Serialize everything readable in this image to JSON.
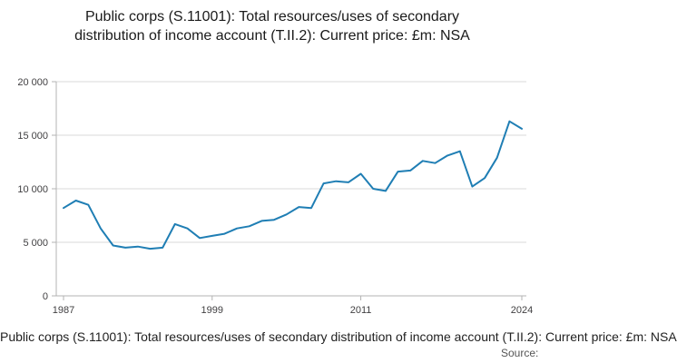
{
  "chart_data": {
    "type": "line",
    "title": "Public corps (S.11001): Total resources/uses of secondary distribution of income account (T.II.2): Current price: £m: NSA",
    "xlabel": "",
    "ylabel": "",
    "x": [
      1987,
      1988,
      1989,
      1990,
      1991,
      1992,
      1993,
      1994,
      1995,
      1996,
      1997,
      1998,
      1999,
      2000,
      2001,
      2002,
      2003,
      2004,
      2005,
      2006,
      2007,
      2008,
      2009,
      2010,
      2011,
      2012,
      2013,
      2014,
      2015,
      2016,
      2017,
      2018,
      2019,
      2020,
      2021,
      2022,
      2023,
      2024
    ],
    "values": [
      8200,
      8900,
      8500,
      6300,
      4700,
      4500,
      4600,
      4400,
      4500,
      6700,
      6300,
      5400,
      5600,
      5800,
      6300,
      6500,
      7000,
      7100,
      7600,
      8300,
      8200,
      10500,
      10700,
      10600,
      11400,
      10000,
      9800,
      11600,
      11700,
      12600,
      12400,
      13100,
      13500,
      10200,
      11000,
      12900,
      16300,
      15600
    ],
    "ylim": [
      0,
      20000
    ],
    "yticks": [
      {
        "value": 0,
        "label": "0"
      },
      {
        "value": 5000,
        "label": "5 000"
      },
      {
        "value": 10000,
        "label": "10 000"
      },
      {
        "value": 15000,
        "label": "15 000"
      },
      {
        "value": 20000,
        "label": "20 000"
      }
    ],
    "xticks": [
      {
        "value": 1987,
        "label": "1987"
      },
      {
        "value": 1999,
        "label": "1999"
      },
      {
        "value": 2011,
        "label": "2011"
      },
      {
        "value": 2024,
        "label": "2024"
      }
    ],
    "line_color": "#1f7eb4",
    "grid_color": "#d9d9d9",
    "axis_color": "#b3b3b3",
    "tick_label_color": "#414042",
    "grid": true,
    "legend": false
  },
  "footer": {
    "caption": "Public corps (S.11001): Total resources/uses of secondary distribution of income account (T.II.2): Current price: £m: NSA",
    "source": "Source:"
  }
}
